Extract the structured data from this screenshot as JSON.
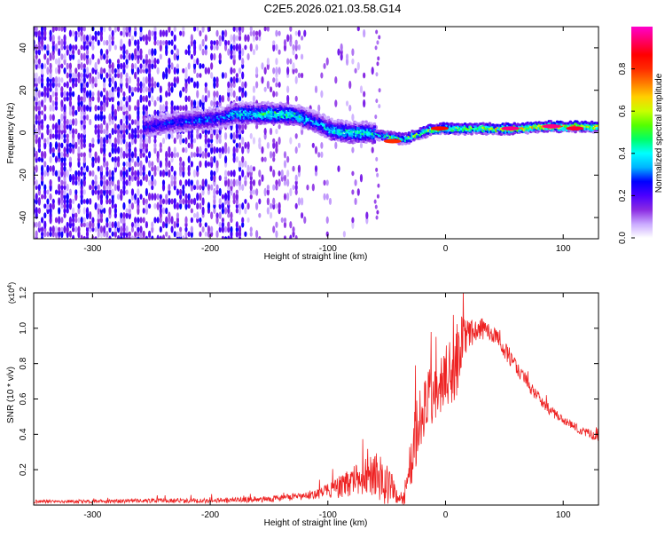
{
  "title": "C2E5.2026.021.03.58.G14",
  "chart_data": [
    {
      "type": "heatmap",
      "xlabel": "Height of straight line (km)",
      "ylabel": "Frequency (Hz)",
      "xlim": [
        -350,
        130
      ],
      "ylim": [
        -50,
        50
      ],
      "xticks": [
        -300,
        -200,
        -100,
        0,
        100
      ],
      "yticks": [
        -40,
        -20,
        0,
        20,
        40
      ],
      "xtick_labels": [
        "-300",
        "-200",
        "-100",
        "0",
        "100"
      ],
      "ytick_labels": [
        "-40",
        "-20",
        "0",
        "20",
        "40"
      ],
      "colorbar": {
        "label": "Normalized spectral amplitude",
        "range": [
          0,
          1
        ],
        "ticks": [
          0.0,
          0.2,
          0.4,
          0.6,
          0.8
        ],
        "tick_labels": [
          "0.0",
          "0.2",
          "0.4",
          "0.6",
          "0.8"
        ],
        "colormap": [
          "#ffffff",
          "#c9a8ff",
          "#8a2be2",
          "#4b00ff",
          "#0000ff",
          "#00b4ff",
          "#00ffff",
          "#00ff66",
          "#55ff00",
          "#c8ff00",
          "#ffd000",
          "#ff7a00",
          "#ff2a00",
          "#ff0000",
          "#ff0066",
          "#ff00cc"
        ]
      },
      "ridge": {
        "x": [
          -250,
          -230,
          -210,
          -190,
          -180,
          -160,
          -140,
          -125,
          -110,
          -95,
          -80,
          -65,
          -55,
          -45,
          -35,
          -25,
          -15,
          -5,
          5,
          20,
          40,
          60,
          80,
          100,
          120,
          130
        ],
        "y": [
          3,
          5,
          6,
          7,
          9,
          9,
          9,
          8,
          5,
          1,
          0,
          0,
          -1,
          -2,
          -3,
          -1,
          1,
          2,
          2,
          2,
          2,
          2,
          3,
          3,
          3,
          3
        ],
        "amplitude": [
          0.3,
          0.3,
          0.35,
          0.35,
          0.45,
          0.5,
          0.55,
          0.5,
          0.4,
          0.45,
          0.5,
          0.5,
          0.45,
          0.55,
          0.55,
          0.6,
          0.6,
          0.65,
          0.6,
          0.65,
          0.7,
          0.75,
          0.75,
          0.8,
          0.75,
          0.7
        ]
      },
      "highlights": [
        {
          "x": 55,
          "y": 2,
          "amplitude": 0.95
        },
        {
          "x": 90,
          "y": 3,
          "amplitude": 0.95
        },
        {
          "x": -5,
          "y": 2,
          "amplitude": 0.85
        },
        {
          "x": -45,
          "y": -4,
          "amplitude": 0.8
        },
        {
          "x": 110,
          "y": 2,
          "amplitude": 0.9
        }
      ]
    },
    {
      "type": "line",
      "xlabel": "Height of straight line (km)",
      "ylabel": "SNR (10 * v/v)",
      "y_multiplier": "(x10",
      "y_multiplier_exp": "4",
      "y_multiplier_close": ")",
      "xlim": [
        -350,
        130
      ],
      "ylim": [
        0,
        1.2
      ],
      "xticks": [
        -300,
        -200,
        -100,
        0,
        100
      ],
      "yticks": [
        0.2,
        0.4,
        0.6,
        0.8,
        1.0,
        1.2
      ],
      "xtick_labels": [
        "-300",
        "-200",
        "-100",
        "0",
        "100"
      ],
      "ytick_labels": [
        "0.2",
        "0.4",
        "0.6",
        "0.8",
        "1.0",
        "1.2"
      ],
      "series": [
        {
          "color": "#ee2222",
          "envelope": {
            "x": [
              -350,
              -300,
              -250,
              -200,
              -160,
              -140,
              -120,
              -100,
              -90,
              -80,
              -70,
              -60,
              -50,
              -45,
              -40,
              -35,
              -30,
              -25,
              -20,
              -15,
              -10,
              -5,
              0,
              5,
              10,
              15,
              20,
              25,
              30,
              35,
              40,
              45,
              50,
              60,
              70,
              80,
              90,
              100,
              110,
              120,
              130
            ],
            "mean": [
              0.02,
              0.02,
              0.025,
              0.025,
              0.03,
              0.04,
              0.05,
              0.08,
              0.1,
              0.13,
              0.16,
              0.18,
              0.12,
              0.1,
              0.03,
              0.05,
              0.25,
              0.38,
              0.5,
              0.58,
              0.62,
              0.65,
              0.7,
              0.75,
              0.85,
              0.95,
              0.97,
              0.98,
              1.0,
              0.99,
              0.97,
              0.93,
              0.88,
              0.78,
              0.68,
              0.6,
              0.53,
              0.48,
              0.44,
              0.41,
              0.38
            ],
            "noise": [
              0.01,
              0.01,
              0.012,
              0.015,
              0.015,
              0.02,
              0.02,
              0.04,
              0.06,
              0.08,
              0.1,
              0.13,
              0.14,
              0.1,
              0.02,
              0.06,
              0.15,
              0.2,
              0.2,
              0.2,
              0.18,
              0.18,
              0.2,
              0.22,
              0.22,
              0.12,
              0.08,
              0.07,
              0.06,
              0.06,
              0.05,
              0.05,
              0.05,
              0.04,
              0.035,
              0.03,
              0.03,
              0.025,
              0.025,
              0.025,
              0.025
            ]
          }
        }
      ]
    }
  ]
}
